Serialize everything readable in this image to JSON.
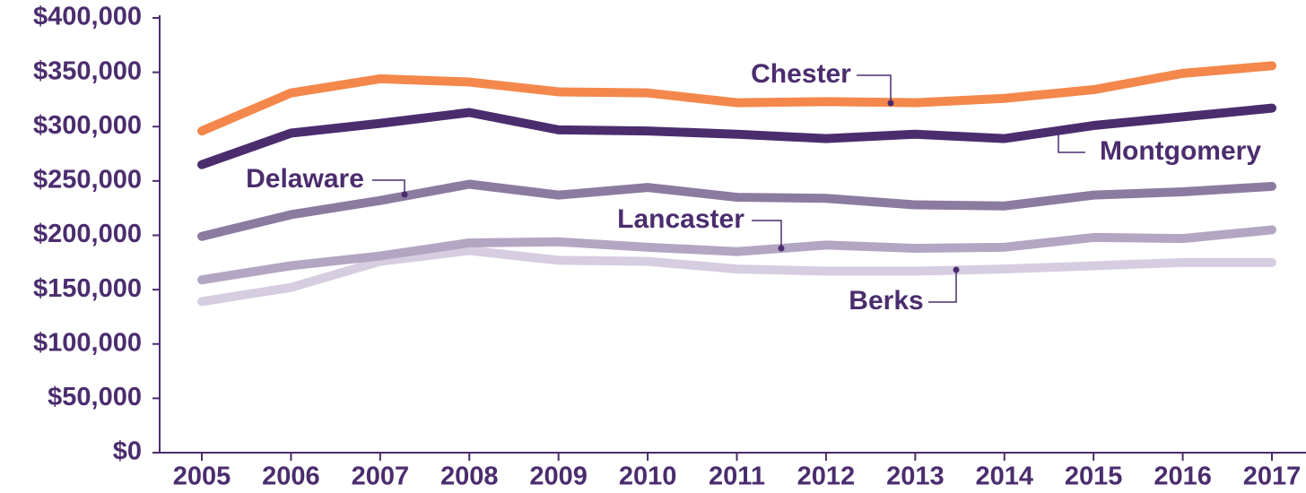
{
  "chart_data": {
    "type": "line",
    "categories": [
      "2005",
      "2006",
      "2007",
      "2008",
      "2009",
      "2010",
      "2011",
      "2012",
      "2013",
      "2014",
      "2015",
      "2016",
      "2017"
    ],
    "series": [
      {
        "name": "Chester",
        "color": "#f4874b",
        "values": [
          296000,
          331000,
          344000,
          341000,
          332000,
          331000,
          322000,
          323000,
          322000,
          326000,
          334000,
          349000,
          356000
        ]
      },
      {
        "name": "Montgomery",
        "color": "#4b2d6e",
        "values": [
          265000,
          294000,
          303000,
          313000,
          297000,
          296000,
          293000,
          289000,
          293000,
          289000,
          301000,
          309000,
          317000
        ]
      },
      {
        "name": "Delaware",
        "color": "#8c7ba0",
        "values": [
          199000,
          219000,
          232000,
          247000,
          237000,
          244000,
          235000,
          234000,
          228000,
          227000,
          237000,
          240000,
          245000
        ]
      },
      {
        "name": "Lancaster",
        "color": "#b3a6c2",
        "values": [
          159000,
          172000,
          181000,
          193000,
          194000,
          189000,
          185000,
          191000,
          188000,
          189000,
          198000,
          197000,
          205000
        ]
      },
      {
        "name": "Berks",
        "color": "#d6cde0",
        "values": [
          139000,
          152000,
          176000,
          186000,
          177000,
          176000,
          169000,
          167000,
          167000,
          169000,
          172000,
          175000,
          175000
        ]
      }
    ],
    "ylim": [
      0,
      400000
    ],
    "yticks": [
      {
        "value": 0,
        "label": "$0"
      },
      {
        "value": 50000,
        "label": "$50,000"
      },
      {
        "value": 100000,
        "label": "$100,000"
      },
      {
        "value": 150000,
        "label": "$150,000"
      },
      {
        "value": 200000,
        "label": "$200,000"
      },
      {
        "value": 250000,
        "label": "$250,000"
      },
      {
        "value": 300000,
        "label": "$300,000"
      },
      {
        "value": 350000,
        "label": "$350,000"
      },
      {
        "value": 400000,
        "label": "$400,000"
      }
    ]
  }
}
